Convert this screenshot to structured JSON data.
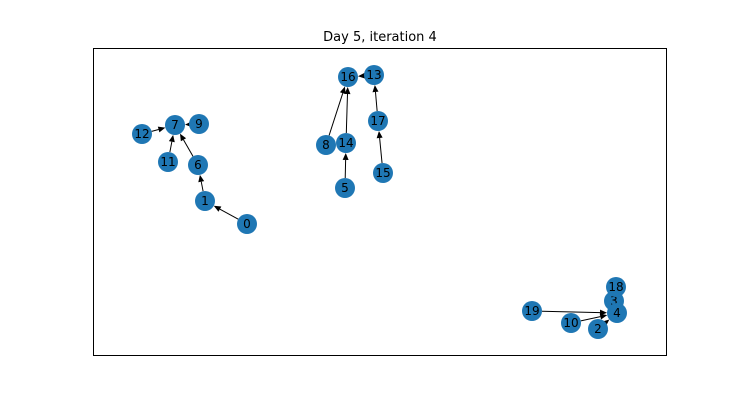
{
  "figure": {
    "title": "Day 5, iteration 4",
    "node_color": "#1f77b4",
    "edge_color": "#000000",
    "frame_color": "#000000",
    "background": "#ffffff"
  },
  "graph": {
    "directed": true,
    "nodes": [
      "0",
      "1",
      "2",
      "3",
      "4",
      "5",
      "6",
      "7",
      "8",
      "9",
      "10",
      "11",
      "12",
      "13",
      "14",
      "15",
      "16",
      "17",
      "18",
      "19"
    ],
    "edges": [
      [
        "0",
        "1"
      ],
      [
        "1",
        "6"
      ],
      [
        "6",
        "7"
      ],
      [
        "11",
        "7"
      ],
      [
        "12",
        "7"
      ],
      [
        "9",
        "7"
      ],
      [
        "8",
        "16"
      ],
      [
        "14",
        "16"
      ],
      [
        "5",
        "14"
      ],
      [
        "13",
        "16"
      ],
      [
        "17",
        "13"
      ],
      [
        "15",
        "17"
      ],
      [
        "19",
        "4"
      ],
      [
        "10",
        "4"
      ],
      [
        "2",
        "4"
      ],
      [
        "18",
        "3"
      ],
      [
        "3",
        "4"
      ]
    ]
  }
}
